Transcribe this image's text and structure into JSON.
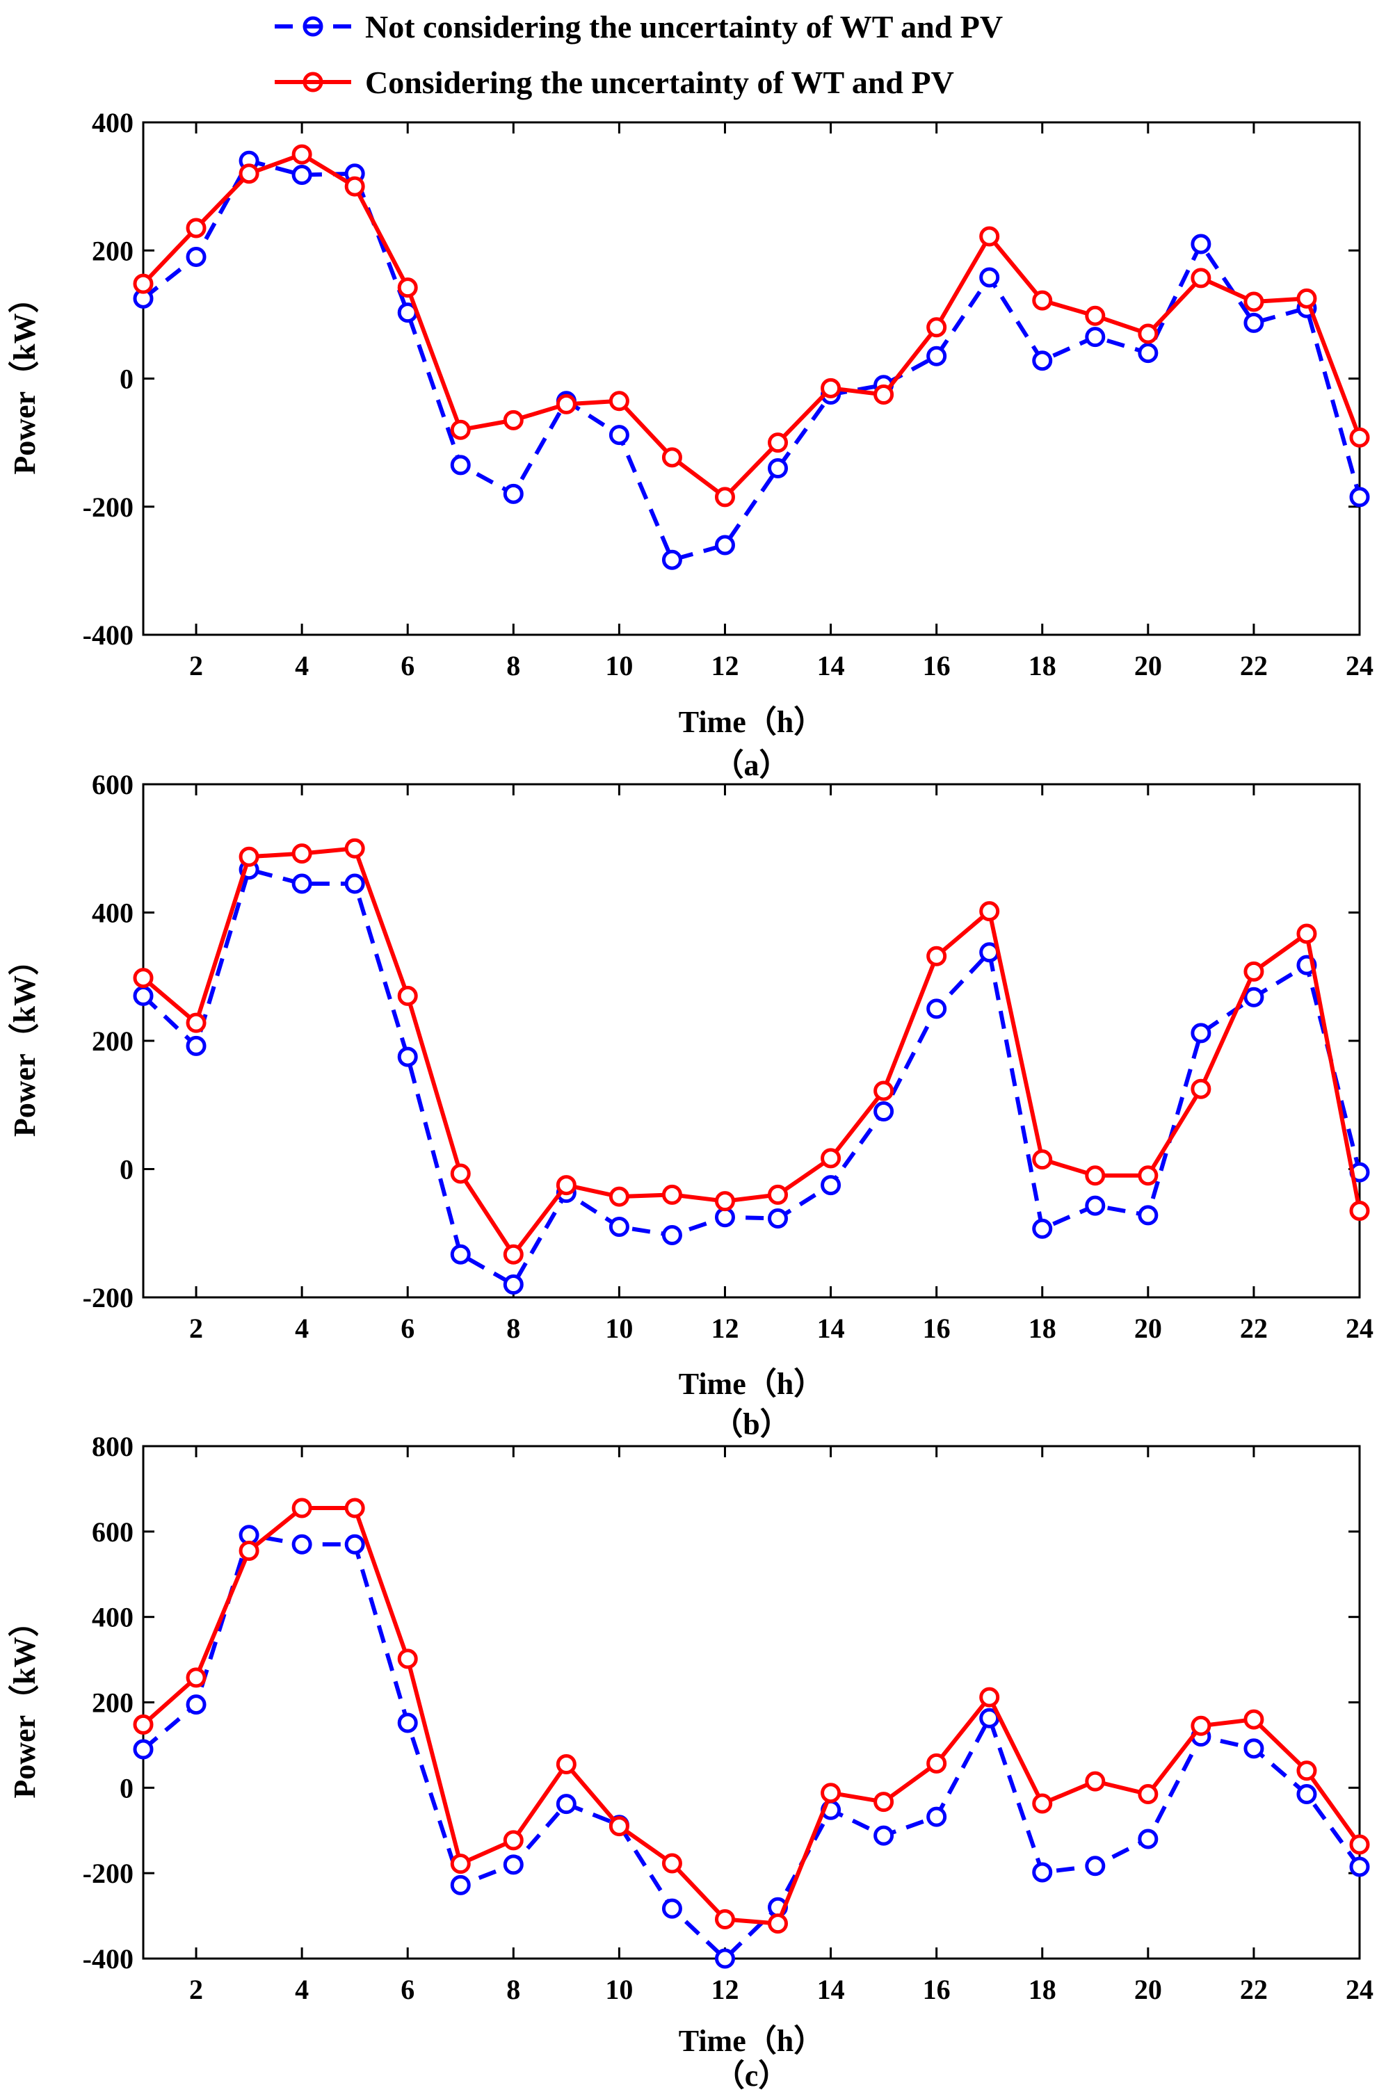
{
  "legend": {
    "entries": [
      {
        "label": "Not considering the uncertainty of WT and PV",
        "color": "#0000ff",
        "style": "dashed",
        "marker": "circle"
      },
      {
        "label": "Considering the uncertainty of WT and PV",
        "color": "#ff0000",
        "style": "solid",
        "marker": "circle"
      }
    ],
    "placement": "top-center, above panel (a)"
  },
  "chart_data": [
    {
      "type": "line",
      "panel_label": "（a）",
      "xlabel": "Time（h）",
      "ylabel": "Power（kW）",
      "xlim": [
        1,
        24
      ],
      "ylim": [
        -400,
        400
      ],
      "xticks": [
        2,
        4,
        6,
        8,
        10,
        12,
        14,
        16,
        18,
        20,
        22,
        24
      ],
      "yticks": [
        -400,
        -200,
        0,
        200,
        400
      ],
      "x": [
        1,
        2,
        3,
        4,
        5,
        6,
        7,
        8,
        9,
        10,
        11,
        12,
        13,
        14,
        15,
        16,
        17,
        18,
        19,
        20,
        21,
        22,
        23,
        24
      ],
      "series": [
        {
          "name": "Not considering the uncertainty of WT and PV",
          "color": "#0000ff",
          "dashed": true,
          "values": [
            125,
            190,
            340,
            318,
            320,
            103,
            -135,
            -180,
            -35,
            -88,
            -283,
            -260,
            -140,
            -25,
            -10,
            35,
            158,
            28,
            65,
            40,
            210,
            87,
            110,
            -185
          ]
        },
        {
          "name": "Considering the uncertainty of WT and PV",
          "color": "#ff0000",
          "dashed": false,
          "values": [
            148,
            235,
            320,
            350,
            300,
            142,
            -80,
            -65,
            -40,
            -35,
            -123,
            -185,
            -100,
            -15,
            -25,
            80,
            222,
            122,
            98,
            70,
            157,
            120,
            125,
            -92
          ]
        }
      ]
    },
    {
      "type": "line",
      "panel_label": "（b）",
      "xlabel": "Time（h）",
      "ylabel": "Power（kW）",
      "xlim": [
        1,
        24
      ],
      "ylim": [
        -200,
        600
      ],
      "xticks": [
        2,
        4,
        6,
        8,
        10,
        12,
        14,
        16,
        18,
        20,
        22,
        24
      ],
      "yticks": [
        -200,
        0,
        200,
        400,
        600
      ],
      "x": [
        1,
        2,
        3,
        4,
        5,
        6,
        7,
        8,
        9,
        10,
        11,
        12,
        13,
        14,
        15,
        16,
        17,
        18,
        19,
        20,
        21,
        22,
        23,
        24
      ],
      "series": [
        {
          "name": "Not considering the uncertainty of WT and PV",
          "color": "#0000ff",
          "dashed": true,
          "values": [
            270,
            192,
            467,
            445,
            445,
            175,
            -133,
            -180,
            -37,
            -90,
            -103,
            -75,
            -77,
            -25,
            90,
            250,
            338,
            -93,
            -57,
            -72,
            212,
            268,
            318,
            -5
          ]
        },
        {
          "name": "Considering the uncertainty of WT and PV",
          "color": "#ff0000",
          "dashed": false,
          "values": [
            298,
            228,
            487,
            492,
            500,
            270,
            -7,
            -133,
            -25,
            -43,
            -40,
            -50,
            -40,
            17,
            122,
            332,
            402,
            15,
            -10,
            -10,
            125,
            308,
            367,
            -65
          ]
        }
      ]
    },
    {
      "type": "line",
      "panel_label": "（c）",
      "xlabel": "Time（h）",
      "ylabel": "Power（kW）",
      "xlim": [
        1,
        24
      ],
      "ylim": [
        -400,
        800
      ],
      "xticks": [
        2,
        4,
        6,
        8,
        10,
        12,
        14,
        16,
        18,
        20,
        22,
        24
      ],
      "yticks": [
        -400,
        -200,
        0,
        200,
        400,
        600,
        800
      ],
      "x": [
        1,
        2,
        3,
        4,
        5,
        6,
        7,
        8,
        9,
        10,
        11,
        12,
        13,
        14,
        15,
        16,
        17,
        18,
        19,
        20,
        21,
        22,
        23,
        24
      ],
      "series": [
        {
          "name": "Not considering the uncertainty of WT and PV",
          "color": "#0000ff",
          "dashed": true,
          "values": [
            90,
            195,
            592,
            570,
            570,
            152,
            -228,
            -180,
            -38,
            -87,
            -283,
            -400,
            -280,
            -52,
            -112,
            -68,
            163,
            -198,
            -183,
            -120,
            120,
            92,
            -15,
            -185
          ]
        },
        {
          "name": "Considering the uncertainty of WT and PV",
          "color": "#ff0000",
          "dashed": false,
          "values": [
            148,
            258,
            555,
            655,
            655,
            302,
            -178,
            -123,
            55,
            -90,
            -177,
            -308,
            -318,
            -12,
            -33,
            57,
            212,
            -37,
            15,
            -15,
            145,
            160,
            40,
            -133
          ]
        }
      ]
    }
  ]
}
